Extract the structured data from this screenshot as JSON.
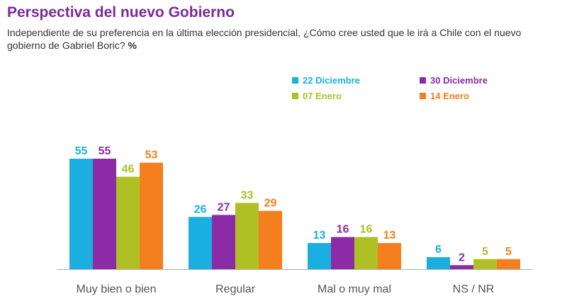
{
  "header": {
    "title": "Perspectiva del nuevo Gobierno",
    "subtitle": "Independiente de su preferencia en la última elección presidencial, ¿Cómo cree usted que le irá a Chile con el nuevo gobierno de Gabriel Boric?",
    "unit": "%"
  },
  "chart_data": {
    "type": "bar",
    "title": "Perspectiva del nuevo Gobierno",
    "categories": [
      "Muy bien o bien",
      "Regular",
      "Mal o muy mal",
      "NS / NR"
    ],
    "series": [
      {
        "name": "22 Diciembre",
        "color": "#1aafe0",
        "values": [
          55,
          26,
          13,
          6
        ]
      },
      {
        "name": "30 Diciembre",
        "color": "#8b2ca6",
        "values": [
          55,
          27,
          16,
          2
        ]
      },
      {
        "name": "07 Enero",
        "color": "#afc024",
        "values": [
          46,
          33,
          16,
          5
        ]
      },
      {
        "name": "14 Enero",
        "color": "#f57e1f",
        "values": [
          53,
          29,
          13,
          5
        ]
      }
    ],
    "ylim": [
      0,
      55
    ],
    "grid": false,
    "legend_position": "top-right",
    "data_labels": true
  }
}
